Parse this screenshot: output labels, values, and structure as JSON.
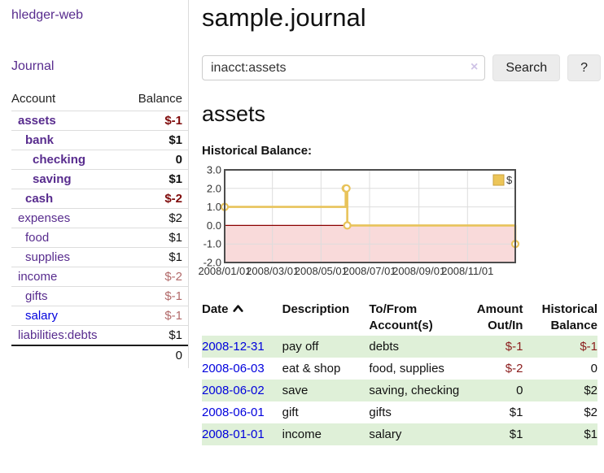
{
  "sidebar": {
    "brand": "hledger-web",
    "nav_journal": "Journal",
    "accounts_table": {
      "col_account": "Account",
      "col_balance": "Balance",
      "rows": [
        {
          "account": "assets",
          "depth": 1,
          "bold": true,
          "link": "visited",
          "balance": "$-1",
          "tone": "strong-neg"
        },
        {
          "account": "bank",
          "depth": 2,
          "bold": true,
          "link": "visited",
          "balance": "$1",
          "tone": ""
        },
        {
          "account": "checking",
          "depth": 3,
          "bold": true,
          "link": "visited",
          "balance": "0",
          "tone": ""
        },
        {
          "account": "saving",
          "depth": 3,
          "bold": true,
          "link": "visited",
          "balance": "$1",
          "tone": ""
        },
        {
          "account": "cash",
          "depth": 2,
          "bold": true,
          "link": "visited",
          "balance": "$-2",
          "tone": "strong-neg"
        },
        {
          "account": "expenses",
          "depth": 1,
          "bold": false,
          "link": "visited",
          "balance": "$2",
          "tone": ""
        },
        {
          "account": "food",
          "depth": 2,
          "bold": false,
          "link": "visited",
          "balance": "$1",
          "tone": ""
        },
        {
          "account": "supplies",
          "depth": 2,
          "bold": false,
          "link": "visited",
          "balance": "$1",
          "tone": ""
        },
        {
          "account": "income",
          "depth": 1,
          "bold": false,
          "link": "visited",
          "balance": "$-2",
          "tone": "soft-neg"
        },
        {
          "account": "gifts",
          "depth": 2,
          "bold": false,
          "link": "visited",
          "balance": "$-1",
          "tone": "soft-neg"
        },
        {
          "account": "salary",
          "depth": 2,
          "bold": false,
          "link": "new",
          "balance": "$-1",
          "tone": "soft-neg"
        },
        {
          "account": "liabilities:debts",
          "depth": 1,
          "bold": false,
          "link": "visited",
          "balance": "$1",
          "tone": ""
        }
      ],
      "total": "0"
    }
  },
  "main": {
    "title": "sample.journal",
    "search": {
      "value": "inacct:assets",
      "clear_icon": "×",
      "button_label": "Search",
      "help_label": "?"
    },
    "section_title": "assets",
    "chart_label": "Historical Balance:"
  },
  "chart_data": {
    "type": "line",
    "title": "Historical Balance",
    "step": "after",
    "series": [
      {
        "name": "$",
        "points": [
          [
            "2008-01-01",
            1
          ],
          [
            "2008-06-01",
            2
          ],
          [
            "2008-06-02",
            2
          ],
          [
            "2008-06-03",
            0
          ],
          [
            "2008-12-31",
            -1
          ]
        ]
      }
    ],
    "x_range": [
      "2008-01-01",
      "2008-12-31"
    ],
    "ylim": [
      -2,
      3
    ],
    "y_ticks": [
      "3.0",
      "2.0",
      "1.0",
      "0.0",
      "-1.0",
      "-2.0"
    ],
    "x_ticks": [
      "2008/01/01",
      "2008/03/01",
      "2008/05/01",
      "2008/07/01",
      "2008/09/01",
      "2008/11/01"
    ],
    "legend": "$",
    "legend_position": "top-right",
    "grid": true,
    "line_color": "#e8c35a",
    "marker_fill": "#ffffff",
    "negative_fill": "#f9dada",
    "zero_line_color": "#8b0000",
    "border_color": "#4d4d4d",
    "grid_color": "#dddddd"
  },
  "transactions": {
    "headers": {
      "date": "Date",
      "description": "Description",
      "accounts": "To/From Account(s)",
      "amount": "Amount Out/In",
      "balance": "Historical Balance"
    },
    "rows": [
      {
        "date": "2008-12-31",
        "description": "pay off",
        "accounts": "debts",
        "amount": "$-1",
        "amount_neg": true,
        "balance": "$-1",
        "balance_neg": true
      },
      {
        "date": "2008-06-03",
        "description": "eat & shop",
        "accounts": "food, supplies",
        "amount": "$-2",
        "amount_neg": true,
        "balance": "0",
        "balance_neg": false
      },
      {
        "date": "2008-06-02",
        "description": "save",
        "accounts": "saving, checking",
        "amount": "0",
        "amount_neg": false,
        "balance": "$2",
        "balance_neg": false
      },
      {
        "date": "2008-06-01",
        "description": "gift",
        "accounts": "gifts",
        "amount": "$1",
        "amount_neg": false,
        "balance": "$2",
        "balance_neg": false
      },
      {
        "date": "2008-01-01",
        "description": "income",
        "accounts": "salary",
        "amount": "$1",
        "amount_neg": false,
        "balance": "$1",
        "balance_neg": false
      }
    ]
  }
}
